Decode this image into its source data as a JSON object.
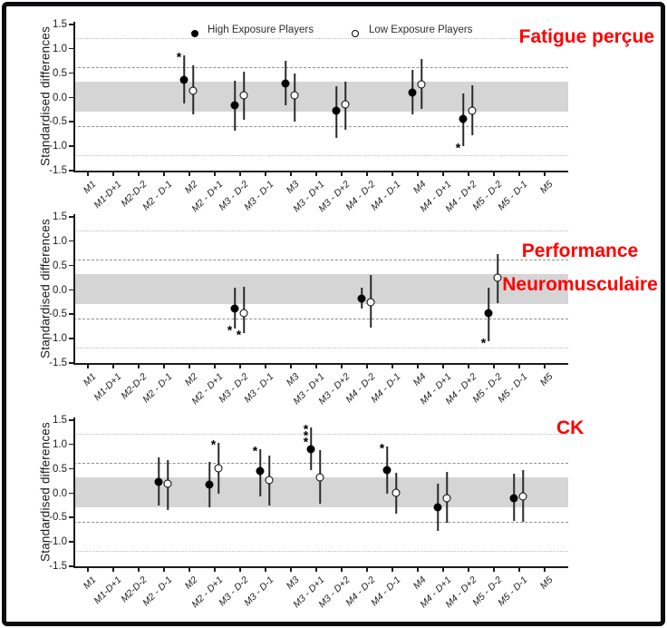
{
  "figure": {
    "border_color": "#0b0b10",
    "background": "#ffffff",
    "title_color": "#ff0000"
  },
  "legend": {
    "items": [
      {
        "label": "High Exposure Players",
        "marker": "filled-circle"
      },
      {
        "label": "Low Exposure Players",
        "marker": "open-circle"
      }
    ]
  },
  "axis": {
    "y_label": "Standardised differences",
    "y_tick_labels": [
      "1.5",
      "1.0",
      "0.5",
      "0.0",
      "-0.5",
      "-1.0",
      "-1.5"
    ],
    "y_tick_values": [
      1.5,
      1.0,
      0.5,
      0.0,
      -0.5,
      -1.0,
      -1.5
    ],
    "y_min": -1.5,
    "y_max": 1.5,
    "shaded_band": [
      -0.3,
      0.3
    ],
    "dashed_lines": [
      0.6,
      -0.6
    ],
    "dotted_lines": [
      1.2,
      -1.2
    ],
    "categories": [
      "M1",
      "M1-D+1",
      "M2-D-2",
      "M2 - D-1",
      "M2",
      "M2 - D+1",
      "M3 - D-2",
      "M3 - D-1",
      "M3",
      "M3 - D+1",
      "M3 - D+2",
      "M4 - D-2",
      "M4 - D-1",
      "M4",
      "M4 - D+1",
      "M4 - D+2",
      "M5 - D-2",
      "M5 - D-1",
      "M5"
    ]
  },
  "colors": {
    "high_series": "#000000",
    "low_series": "#ffffff",
    "band": "#d5d5d5"
  },
  "chart_data": [
    {
      "type": "scatter",
      "title": "Fatigue perçue",
      "title_lines": [
        "Fatigue perçue"
      ],
      "series_names": [
        "High Exposure Players",
        "Low Exposure Players"
      ],
      "ylabel": "Standardised differences",
      "ylim": [
        -1.5,
        1.5
      ],
      "points": [
        {
          "category": "M2",
          "high": {
            "mean": 0.35,
            "lo": -0.14,
            "hi": 0.84,
            "sig": "*",
            "sig_side": "above"
          },
          "low": {
            "mean": 0.13,
            "lo": -0.37,
            "hi": 0.64
          }
        },
        {
          "category": "M3 - D-2",
          "high": {
            "mean": -0.18,
            "lo": -0.7,
            "hi": 0.33
          },
          "low": {
            "mean": 0.03,
            "lo": -0.47,
            "hi": 0.52
          }
        },
        {
          "category": "M3",
          "high": {
            "mean": 0.27,
            "lo": -0.18,
            "hi": 0.73
          },
          "low": {
            "mean": 0.02,
            "lo": -0.52,
            "hi": 0.47
          }
        },
        {
          "category": "M3 - D+2",
          "high": {
            "mean": -0.28,
            "lo": -0.85,
            "hi": 0.21
          },
          "low": {
            "mean": -0.15,
            "lo": -0.68,
            "hi": 0.3
          }
        },
        {
          "category": "M4",
          "high": {
            "mean": 0.09,
            "lo": -0.37,
            "hi": 0.55
          },
          "low": {
            "mean": 0.25,
            "lo": -0.26,
            "hi": 0.77
          }
        },
        {
          "category": "M4 - D+2",
          "high": {
            "mean": -0.45,
            "lo": -1.02,
            "hi": 0.07,
            "sig": "*",
            "sig_side": "below"
          },
          "low": {
            "mean": -0.28,
            "lo": -0.8,
            "hi": 0.23
          }
        }
      ]
    },
    {
      "type": "scatter",
      "title": "Performance Neuromusculaire",
      "title_lines": [
        "Performance",
        "Neuromusculaire"
      ],
      "series_names": [
        "High Exposure Players",
        "Low Exposure Players"
      ],
      "ylabel": "Standardised differences",
      "ylim": [
        -1.5,
        1.5
      ],
      "points": [
        {
          "category": "M3 - D-2",
          "high": {
            "mean": -0.4,
            "lo": -0.81,
            "hi": 0.02,
            "sig": "*",
            "sig_side": "below"
          },
          "low": {
            "mean": -0.5,
            "lo": -0.91,
            "hi": 0.05,
            "sig": "*",
            "sig_side": "below"
          }
        },
        {
          "category": "M4 - D-2",
          "high": {
            "mean": -0.19,
            "lo": -0.41,
            "hi": 0.03
          },
          "low": {
            "mean": -0.27,
            "lo": -0.79,
            "hi": 0.28
          }
        },
        {
          "category": "M5 - D-2",
          "high": {
            "mean": -0.5,
            "lo": -1.07,
            "hi": 0.02,
            "sig": "*",
            "sig_side": "below"
          },
          "low": {
            "mean": 0.23,
            "lo": -0.28,
            "hi": 0.72
          }
        }
      ]
    },
    {
      "type": "scatter",
      "title": "CK",
      "title_lines": [
        "CK"
      ],
      "series_names": [
        "High Exposure Players",
        "Low Exposure Players"
      ],
      "ylabel": "Standardised differences",
      "ylim": [
        -1.5,
        1.5
      ],
      "points": [
        {
          "category": "M2 - D-1",
          "high": {
            "mean": 0.22,
            "lo": -0.27,
            "hi": 0.71
          },
          "low": {
            "mean": 0.17,
            "lo": -0.37,
            "hi": 0.66
          }
        },
        {
          "category": "M2 - D+1",
          "high": {
            "mean": 0.16,
            "lo": -0.3,
            "hi": 0.62
          },
          "low": {
            "mean": 0.49,
            "lo": -0.02,
            "hi": 1.01,
            "sig": "*",
            "sig_side": "above"
          }
        },
        {
          "category": "M3 - D-1",
          "high": {
            "mean": 0.44,
            "lo": -0.08,
            "hi": 0.89,
            "sig": "*",
            "sig_side": "above"
          },
          "low": {
            "mean": 0.26,
            "lo": -0.27,
            "hi": 0.76
          }
        },
        {
          "category": "M3 - D+1",
          "high": {
            "mean": 0.89,
            "lo": 0.45,
            "hi": 1.34,
            "sig": "***",
            "sig_side": "above"
          },
          "low": {
            "mean": 0.31,
            "lo": -0.23,
            "hi": 0.86
          }
        },
        {
          "category": "M4 - D-1",
          "high": {
            "mean": 0.46,
            "lo": -0.03,
            "hi": 0.94,
            "sig": "*",
            "sig_side": "above"
          },
          "low": {
            "mean": -0.01,
            "lo": -0.43,
            "hi": 0.4
          }
        },
        {
          "category": "M4 - D+1",
          "high": {
            "mean": -0.31,
            "lo": -0.79,
            "hi": 0.18
          },
          "low": {
            "mean": -0.12,
            "lo": -0.63,
            "hi": 0.42
          }
        },
        {
          "category": "M5 - D-1",
          "high": {
            "mean": -0.12,
            "lo": -0.59,
            "hi": 0.38
          },
          "low": {
            "mean": -0.09,
            "lo": -0.61,
            "hi": 0.46
          }
        }
      ]
    }
  ]
}
